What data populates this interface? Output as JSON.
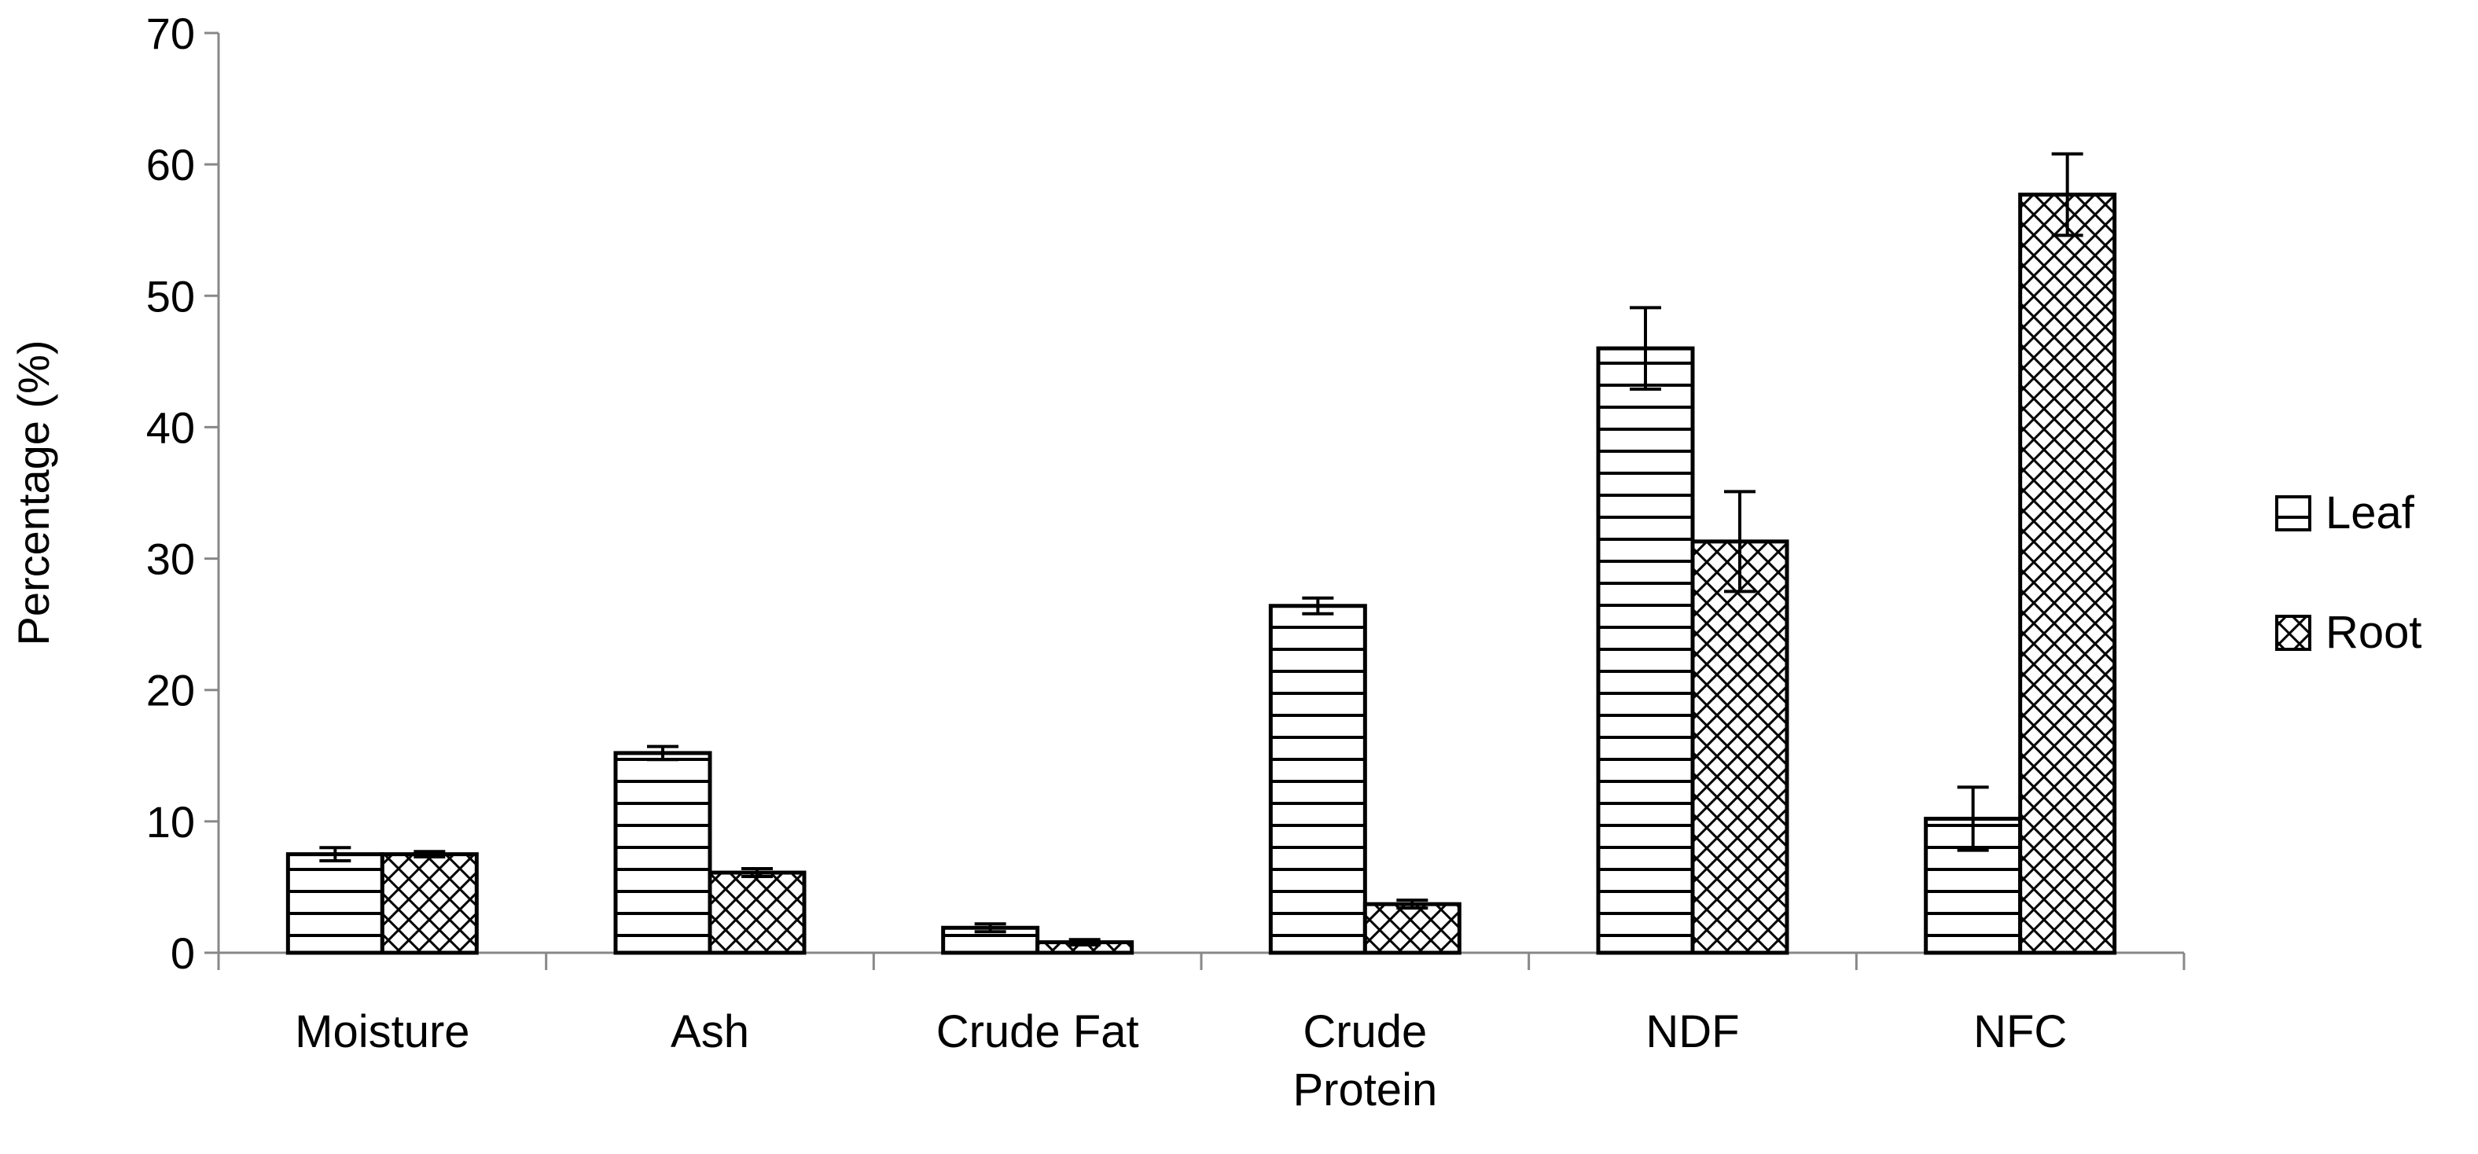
{
  "chart_data": {
    "type": "bar",
    "title": "",
    "xlabel": "",
    "ylabel": "Percentage (%)",
    "ylim": [
      0,
      70
    ],
    "yticks": [
      0,
      10,
      20,
      30,
      40,
      50,
      60,
      70
    ],
    "grid": false,
    "legend_position": "right",
    "categories": [
      [
        "Moisture"
      ],
      [
        "Ash"
      ],
      [
        "Crude Fat"
      ],
      [
        "Crude",
        "Protein"
      ],
      [
        "NDF"
      ],
      [
        "NFC"
      ]
    ],
    "series": [
      {
        "name": "Leaf",
        "pattern": "horizontal-lines",
        "values": [
          7.5,
          15.2,
          1.9,
          26.4,
          46.0,
          10.2
        ],
        "errors": [
          0.5,
          0.5,
          0.3,
          0.6,
          3.1,
          2.4
        ]
      },
      {
        "name": "Root",
        "pattern": "crosshatch",
        "values": [
          7.5,
          6.1,
          0.8,
          3.7,
          31.3,
          57.7
        ],
        "errors": [
          0.2,
          0.3,
          0.2,
          0.3,
          3.8,
          3.1
        ]
      }
    ],
    "colors": {
      "stroke": "#000000",
      "fill": "#ffffff"
    }
  }
}
